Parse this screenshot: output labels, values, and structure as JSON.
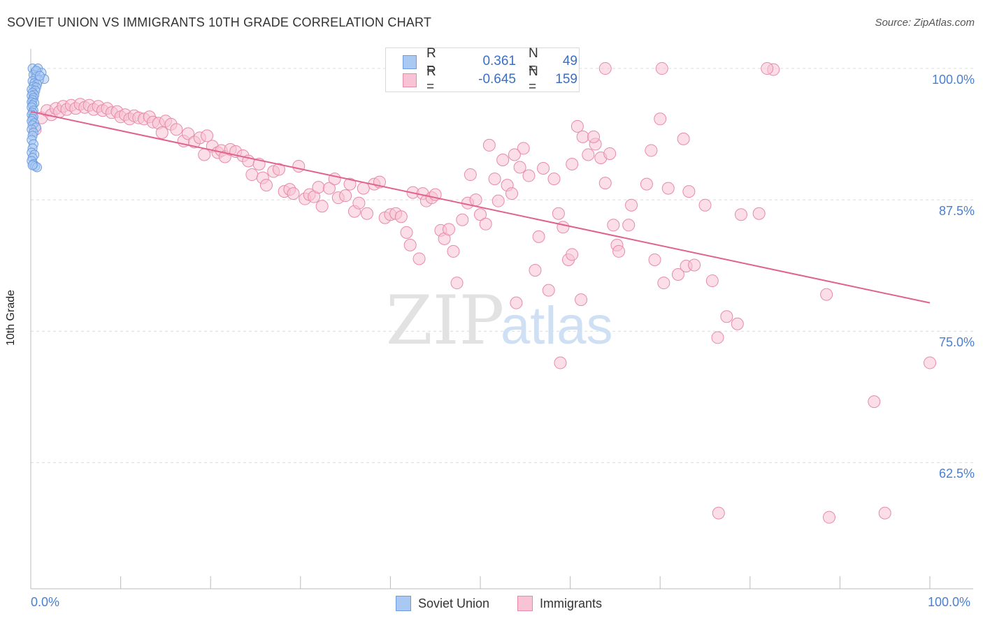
{
  "title": "SOVIET UNION VS IMMIGRANTS 10TH GRADE CORRELATION CHART",
  "source": "Source: ZipAtlas.com",
  "watermark": {
    "zip": "ZIP",
    "atlas": "atlas"
  },
  "stats": [
    {
      "r_label": "R =",
      "r_value": "0.361",
      "n_label": "N =",
      "n_value": "49",
      "color": "#a9c8f2",
      "border": "#6d9de0"
    },
    {
      "r_label": "R =",
      "r_value": "-0.645",
      "n_label": "N =",
      "n_value": "159",
      "color": "#f8c3d4",
      "border": "#e88aa8"
    }
  ],
  "legend": [
    {
      "label": "Soviet Union",
      "color": "#a9c8f2",
      "border": "#6d9de0"
    },
    {
      "label": "Immigrants",
      "color": "#f8c3d4",
      "border": "#e88aa8"
    }
  ],
  "chart_data": {
    "type": "scatter",
    "title": "SOVIET UNION VS IMMIGRANTS 10TH GRADE CORRELATION CHART",
    "xlabel": "",
    "ylabel": "10th Grade",
    "xlim": [
      0,
      100
    ],
    "ylim": [
      50.5,
      101.2
    ],
    "x_tick_labels": [
      "0.0%",
      "100.0%"
    ],
    "y_ticks": [
      62.5,
      75.0,
      87.5,
      100.0
    ],
    "y_tick_labels": [
      "62.5%",
      "75.0%",
      "87.5%",
      "100.0%"
    ],
    "grid": true,
    "legend_position": "bottom",
    "series": [
      {
        "name": "Soviet Union",
        "color": "#6d9de0",
        "fill": "#a9c8f2",
        "points": [
          [
            0.2,
            100.0
          ],
          [
            0.5,
            99.7
          ],
          [
            0.8,
            100.0
          ],
          [
            1.2,
            99.6
          ],
          [
            0.3,
            99.4
          ],
          [
            0.6,
            99.2
          ],
          [
            1.5,
            99.0
          ],
          [
            0.9,
            98.9
          ],
          [
            0.2,
            98.8
          ],
          [
            0.4,
            98.6
          ],
          [
            0.7,
            98.5
          ],
          [
            0.3,
            98.3
          ],
          [
            0.6,
            98.2
          ],
          [
            0.1,
            98.0
          ],
          [
            0.5,
            97.9
          ],
          [
            0.2,
            97.7
          ],
          [
            0.4,
            97.5
          ],
          [
            0.1,
            97.4
          ],
          [
            0.3,
            97.2
          ],
          [
            0.2,
            97.0
          ],
          [
            0.1,
            96.8
          ],
          [
            0.4,
            96.7
          ],
          [
            0.2,
            96.5
          ],
          [
            0.1,
            96.3
          ],
          [
            0.3,
            96.0
          ],
          [
            0.2,
            95.8
          ],
          [
            0.1,
            95.6
          ],
          [
            0.3,
            95.4
          ],
          [
            0.2,
            95.2
          ],
          [
            0.1,
            95.0
          ],
          [
            0.4,
            94.8
          ],
          [
            0.2,
            94.6
          ],
          [
            0.6,
            94.4
          ],
          [
            0.1,
            94.2
          ],
          [
            0.3,
            93.9
          ],
          [
            0.2,
            93.6
          ],
          [
            0.1,
            93.2
          ],
          [
            0.3,
            92.8
          ],
          [
            0.2,
            92.4
          ],
          [
            0.1,
            92.0
          ],
          [
            0.4,
            91.8
          ],
          [
            0.2,
            91.5
          ],
          [
            0.1,
            91.2
          ],
          [
            0.3,
            90.9
          ],
          [
            0.5,
            90.7
          ],
          [
            0.7,
            90.6
          ],
          [
            0.2,
            90.8
          ],
          [
            0.6,
            99.8
          ],
          [
            1.0,
            99.3
          ]
        ]
      },
      {
        "name": "Immigrants",
        "color": "#e88aa8",
        "fill": "#f8c3d4",
        "trend": [
          [
            0,
            95.9
          ],
          [
            100,
            77.7
          ]
        ],
        "points": [
          [
            0.5,
            94.2
          ],
          [
            1.2,
            95.3
          ],
          [
            1.8,
            96.0
          ],
          [
            2.3,
            95.6
          ],
          [
            2.8,
            96.2
          ],
          [
            3.2,
            95.9
          ],
          [
            3.6,
            96.4
          ],
          [
            4.0,
            96.1
          ],
          [
            4.5,
            96.5
          ],
          [
            5.0,
            96.2
          ],
          [
            5.5,
            96.6
          ],
          [
            6.0,
            96.3
          ],
          [
            6.5,
            96.5
          ],
          [
            7.0,
            96.1
          ],
          [
            7.5,
            96.4
          ],
          [
            8.0,
            96.0
          ],
          [
            8.5,
            96.2
          ],
          [
            9.0,
            95.8
          ],
          [
            9.6,
            95.9
          ],
          [
            10.0,
            95.4
          ],
          [
            10.5,
            95.6
          ],
          [
            11.0,
            95.2
          ],
          [
            11.5,
            95.5
          ],
          [
            12.0,
            95.3
          ],
          [
            12.6,
            95.2
          ],
          [
            13.2,
            95.4
          ],
          [
            13.6,
            94.9
          ],
          [
            14.2,
            94.8
          ],
          [
            14.6,
            93.9
          ],
          [
            15.0,
            95.0
          ],
          [
            15.6,
            94.7
          ],
          [
            16.2,
            94.2
          ],
          [
            17.0,
            93.1
          ],
          [
            17.5,
            93.8
          ],
          [
            18.2,
            93.0
          ],
          [
            18.8,
            93.4
          ],
          [
            19.3,
            91.8
          ],
          [
            19.6,
            93.6
          ],
          [
            20.2,
            92.6
          ],
          [
            20.8,
            92.0
          ],
          [
            21.2,
            92.2
          ],
          [
            21.6,
            91.6
          ],
          [
            22.2,
            92.3
          ],
          [
            22.8,
            92.1
          ],
          [
            23.6,
            91.7
          ],
          [
            24.2,
            91.2
          ],
          [
            24.6,
            89.9
          ],
          [
            25.4,
            90.9
          ],
          [
            25.8,
            89.6
          ],
          [
            26.2,
            88.9
          ],
          [
            27.0,
            90.2
          ],
          [
            27.6,
            90.4
          ],
          [
            28.2,
            88.3
          ],
          [
            28.8,
            88.5
          ],
          [
            29.2,
            88.1
          ],
          [
            29.8,
            90.7
          ],
          [
            30.5,
            87.6
          ],
          [
            31.0,
            88.0
          ],
          [
            31.5,
            87.8
          ],
          [
            32.0,
            88.7
          ],
          [
            32.4,
            86.9
          ],
          [
            33.2,
            88.6
          ],
          [
            33.8,
            89.5
          ],
          [
            34.2,
            87.7
          ],
          [
            35.0,
            87.9
          ],
          [
            35.5,
            89.0
          ],
          [
            36.0,
            86.4
          ],
          [
            36.5,
            87.2
          ],
          [
            37.0,
            88.6
          ],
          [
            37.4,
            86.2
          ],
          [
            38.2,
            89.0
          ],
          [
            38.8,
            89.2
          ],
          [
            39.4,
            85.8
          ],
          [
            40.0,
            86.1
          ],
          [
            40.6,
            86.2
          ],
          [
            41.2,
            85.9
          ],
          [
            41.8,
            84.4
          ],
          [
            42.2,
            83.2
          ],
          [
            42.5,
            88.2
          ],
          [
            43.2,
            81.9
          ],
          [
            43.6,
            88.1
          ],
          [
            44.0,
            87.4
          ],
          [
            44.6,
            87.7
          ],
          [
            45.0,
            88.0
          ],
          [
            45.6,
            84.6
          ],
          [
            46.0,
            83.8
          ],
          [
            46.5,
            84.7
          ],
          [
            47.0,
            82.6
          ],
          [
            47.4,
            79.6
          ],
          [
            48.0,
            85.6
          ],
          [
            48.6,
            87.2
          ],
          [
            48.9,
            89.9
          ],
          [
            49.5,
            87.5
          ],
          [
            50.0,
            86.1
          ],
          [
            50.6,
            85.2
          ],
          [
            51.0,
            92.7
          ],
          [
            51.6,
            89.5
          ],
          [
            52.0,
            87.4
          ],
          [
            52.5,
            91.3
          ],
          [
            53.0,
            88.9
          ],
          [
            53.5,
            88.1
          ],
          [
            54.0,
            77.7
          ],
          [
            54.4,
            90.6
          ],
          [
            54.8,
            92.4
          ],
          [
            55.4,
            89.8
          ],
          [
            56.1,
            80.8
          ],
          [
            56.5,
            84.0
          ],
          [
            57.0,
            90.5
          ],
          [
            57.6,
            78.9
          ],
          [
            58.2,
            89.5
          ],
          [
            58.7,
            86.2
          ],
          [
            58.9,
            72.0
          ],
          [
            59.2,
            84.9
          ],
          [
            59.8,
            81.8
          ],
          [
            60.2,
            82.3
          ],
          [
            60.8,
            94.5
          ],
          [
            61.2,
            78.0
          ],
          [
            61.4,
            93.5
          ],
          [
            62.0,
            91.8
          ],
          [
            62.8,
            92.8
          ],
          [
            63.4,
            91.5
          ],
          [
            63.9,
            89.1
          ],
          [
            64.4,
            91.9
          ],
          [
            64.8,
            85.1
          ],
          [
            65.2,
            83.2
          ],
          [
            65.4,
            82.6
          ],
          [
            66.5,
            85.1
          ],
          [
            66.8,
            87.0
          ],
          [
            68.5,
            89.0
          ],
          [
            69.0,
            92.2
          ],
          [
            69.4,
            81.8
          ],
          [
            70.0,
            95.2
          ],
          [
            70.4,
            79.6
          ],
          [
            70.9,
            88.6
          ],
          [
            72.0,
            80.4
          ],
          [
            72.6,
            93.3
          ],
          [
            72.9,
            81.2
          ],
          [
            73.2,
            88.3
          ],
          [
            73.8,
            81.3
          ],
          [
            75.0,
            87.0
          ],
          [
            75.8,
            79.8
          ],
          [
            76.4,
            74.4
          ],
          [
            77.4,
            76.4
          ],
          [
            78.6,
            75.7
          ],
          [
            79.0,
            86.1
          ],
          [
            81.0,
            86.2
          ],
          [
            82.6,
            99.9
          ],
          [
            88.5,
            78.5
          ],
          [
            93.8,
            68.3
          ],
          [
            100.0,
            72.0
          ],
          [
            88.8,
            57.3
          ],
          [
            95.0,
            57.7
          ],
          [
            76.5,
            57.7
          ],
          [
            63.9,
            100.0
          ],
          [
            70.2,
            100.0
          ],
          [
            81.9,
            100.0
          ],
          [
            53.8,
            91.8
          ],
          [
            60.2,
            90.9
          ],
          [
            62.6,
            93.5
          ]
        ]
      }
    ]
  }
}
